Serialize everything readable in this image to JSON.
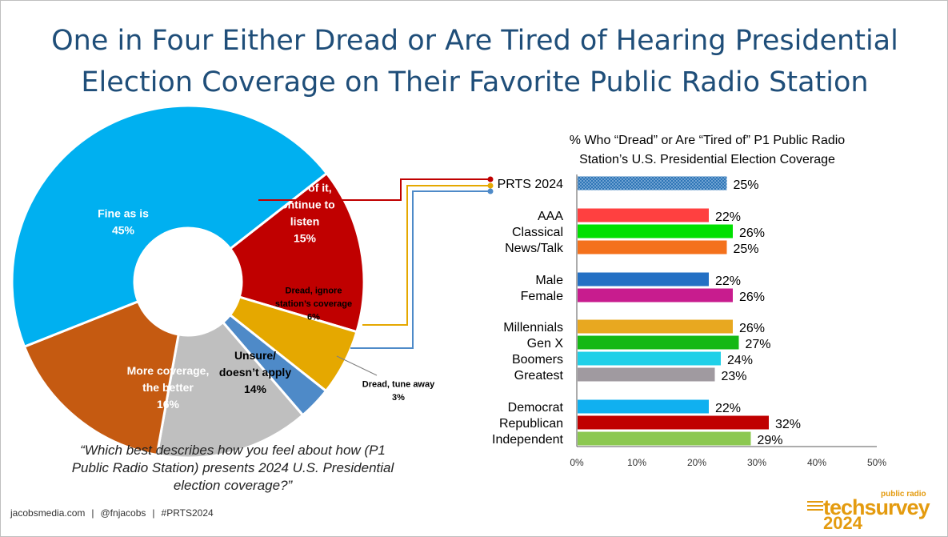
{
  "title": {
    "line1": "One in Four Either Dread or Are Tired of Hearing Presidential",
    "line2": "Election Coverage on Their Favorite Public Radio Station"
  },
  "quote": "“Which best describes how you feel about how (P1 Public Radio Station) presents 2024 U.S. Presidential election coverage?”",
  "footer": {
    "site": "jacobsmedia.com",
    "handle": "@fnjacobs",
    "tag": "#PRTS2024"
  },
  "logo": {
    "small": "public radio",
    "main": "techsurvey",
    "year": "2024"
  },
  "colors": {
    "title": "#1f4e79",
    "accent": "#e49b0f"
  },
  "chart_data": [
    {
      "type": "pie",
      "slices": [
        {
          "label": [
            "Tired of it,",
            "continue to",
            "listen"
          ],
          "value": 15,
          "color": "#c00000",
          "textcolor": "#ffffff"
        },
        {
          "label": [
            "Dread, ignore",
            "station’s coverage"
          ],
          "value": 6,
          "color": "#e5a800",
          "textcolor": "#000000"
        },
        {
          "label": [
            "Dread, tune away"
          ],
          "value": 3,
          "color": "#4e8ac8",
          "textcolor": "#000000"
        },
        {
          "label": [
            "Unsure/",
            "doesn’t apply"
          ],
          "value": 14,
          "color": "#bfbfbf",
          "textcolor": "#000000"
        },
        {
          "label": [
            "More coverage,",
            "the better"
          ],
          "value": 16,
          "color": "#c55a11",
          "textcolor": "#ffffff"
        },
        {
          "label": [
            "Fine as is"
          ],
          "value": 45,
          "color": "#00b0f0",
          "textcolor": "#ffffff"
        }
      ]
    },
    {
      "type": "bar",
      "title": [
        "% Who “Dread” or Are “Tired of” P1 Public Radio",
        "Station’s U.S. Presidential Election Coverage"
      ],
      "xlim": [
        0,
        50
      ],
      "xticks": [
        0,
        10,
        20,
        30,
        40,
        50
      ],
      "tick_suffix": "%",
      "bars": [
        {
          "label": "PRTS 2024",
          "value": 25,
          "color": "#2e75b6",
          "pattern": true
        },
        {
          "label": "AAA",
          "value": 22,
          "color": "#ff4040"
        },
        {
          "label": "Classical",
          "value": 26,
          "color": "#00e000"
        },
        {
          "label": "News/Talk",
          "value": 25,
          "color": "#f4711c"
        },
        {
          "label": "Male",
          "value": 22,
          "color": "#2470c4"
        },
        {
          "label": "Female",
          "value": 26,
          "color": "#c81c8e"
        },
        {
          "label": "Millennials",
          "value": 26,
          "color": "#e8a820"
        },
        {
          "label": "Gen X",
          "value": 27,
          "color": "#14b814"
        },
        {
          "label": "Boomers",
          "value": 24,
          "color": "#20d0e8"
        },
        {
          "label": "Greatest",
          "value": 23,
          "color": "#a09aa0"
        },
        {
          "label": "Democrat",
          "value": 22,
          "color": "#10b0f0"
        },
        {
          "label": "Republican",
          "value": 32,
          "color": "#c00000"
        },
        {
          "label": "Independent",
          "value": 29,
          "color": "#8cc850"
        }
      ]
    }
  ]
}
